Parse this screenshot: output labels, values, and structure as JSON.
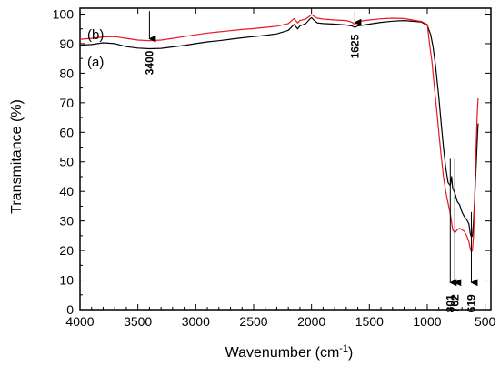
{
  "chart_data": {
    "type": "line",
    "title": "",
    "xlabel": "Wavenumber (cm",
    "xlabel_sup": "-1",
    "xlabel_close": ")",
    "ylabel": "Transmitance (%)",
    "xlim": [
      4000,
      450
    ],
    "ylim": [
      0,
      102
    ],
    "x_reversed": true,
    "grid": false,
    "x_ticks": [
      4000,
      3500,
      3000,
      2500,
      2000,
      1500,
      1000,
      500
    ],
    "y_ticks": [
      0,
      10,
      20,
      30,
      40,
      50,
      60,
      70,
      80,
      90,
      100
    ],
    "series": [
      {
        "name": "(a)",
        "color": "#000000",
        "x": [
          4000,
          3900,
          3800,
          3700,
          3600,
          3500,
          3400,
          3300,
          3200,
          3100,
          3000,
          2900,
          2800,
          2700,
          2600,
          2500,
          2400,
          2300,
          2200,
          2150,
          2120,
          2100,
          2050,
          2010,
          2000,
          1980,
          1950,
          1900,
          1800,
          1700,
          1650,
          1625,
          1600,
          1500,
          1400,
          1300,
          1200,
          1100,
          1050,
          1000,
          970,
          950,
          930,
          900,
          880,
          860,
          840,
          820,
          801,
          790,
          780,
          762,
          740,
          720,
          700,
          680,
          660,
          640,
          630,
          619,
          610,
          600,
          590,
          580,
          570,
          565,
          560
        ],
        "y": [
          89.5,
          89.7,
          90.3,
          90.0,
          89.0,
          88.5,
          88.3,
          88.4,
          88.9,
          89.4,
          90.0,
          90.6,
          91.0,
          91.5,
          92.0,
          92.4,
          92.8,
          93.3,
          94.5,
          96.5,
          95.0,
          96.0,
          96.8,
          98.5,
          98.8,
          98.0,
          97.0,
          96.8,
          96.6,
          96.3,
          96.0,
          95.5,
          96.0,
          96.6,
          97.2,
          97.6,
          97.8,
          97.5,
          97.3,
          96.2,
          93.0,
          89.0,
          83.0,
          72.0,
          63.0,
          55.0,
          48.0,
          43.0,
          42.0,
          45.0,
          41.0,
          39.5,
          36.5,
          35.5,
          33.0,
          31.5,
          30.5,
          29.0,
          26.0,
          24.5,
          25.0,
          30.0,
          38.0,
          46.0,
          55.0,
          60.0,
          63.0
        ]
      },
      {
        "name": "(b)",
        "color": "#e8191e",
        "x": [
          4000,
          3900,
          3800,
          3700,
          3600,
          3500,
          3400,
          3300,
          3200,
          3100,
          3000,
          2900,
          2800,
          2700,
          2600,
          2500,
          2400,
          2300,
          2200,
          2150,
          2120,
          2100,
          2050,
          2010,
          2000,
          1980,
          1950,
          1900,
          1800,
          1700,
          1650,
          1625,
          1600,
          1500,
          1400,
          1300,
          1200,
          1100,
          1050,
          1000,
          980,
          960,
          940,
          920,
          900,
          880,
          860,
          840,
          820,
          801,
          790,
          780,
          762,
          740,
          720,
          700,
          680,
          660,
          640,
          630,
          619,
          610,
          600,
          590,
          580,
          570,
          565,
          560
        ],
        "y": [
          91.5,
          91.8,
          92.3,
          92.4,
          91.8,
          91.2,
          91.0,
          91.2,
          91.8,
          92.4,
          93.0,
          93.6,
          94.0,
          94.4,
          94.8,
          95.1,
          95.5,
          95.9,
          96.8,
          98.5,
          97.0,
          97.8,
          98.3,
          99.5,
          99.8,
          99.3,
          98.6,
          98.3,
          98.0,
          97.8,
          97.2,
          96.5,
          97.5,
          98.0,
          98.4,
          98.6,
          98.5,
          97.8,
          97.5,
          96.5,
          90.0,
          84.0,
          76.0,
          68.0,
          60.0,
          52.0,
          45.0,
          40.0,
          36.0,
          32.5,
          29.5,
          27.0,
          26.0,
          27.0,
          27.5,
          27.0,
          26.5,
          25.0,
          23.0,
          21.0,
          19.5,
          20.0,
          25.0,
          38.0,
          52.0,
          64.0,
          69.0,
          71.5
        ]
      }
    ],
    "annotations": [
      {
        "label": "3400",
        "x": 3400,
        "arrow_from_y": 101,
        "arrow_to_y": 89.5,
        "text_below": true
      },
      {
        "label": "1625",
        "x": 1625,
        "arrow_from_y": 101,
        "arrow_to_y": 95,
        "text_below": true
      },
      {
        "label": "801",
        "x": 801,
        "arrow_from_y": 51,
        "arrow_to_y": 7,
        "text_below": true
      },
      {
        "label": "762",
        "x": 762,
        "arrow_from_y": 51,
        "arrow_to_y": 7,
        "text_below": true
      },
      {
        "label": "619",
        "x": 619,
        "arrow_from_y": 33,
        "arrow_to_y": 7,
        "text_below": true
      }
    ]
  }
}
